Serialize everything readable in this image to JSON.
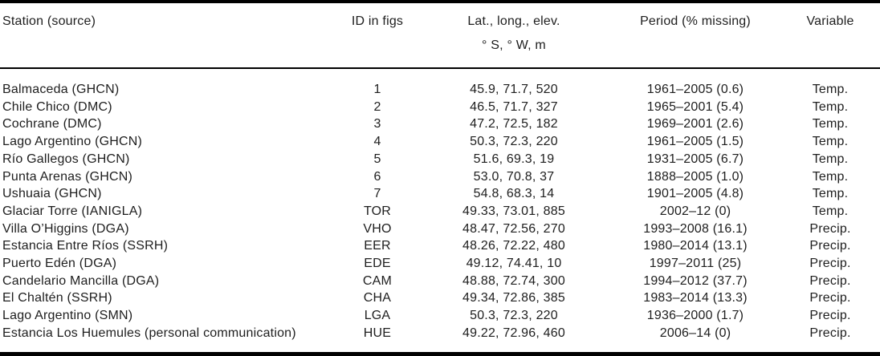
{
  "table": {
    "header": {
      "station": "Station (source)",
      "id": "ID in figs",
      "latlong": "Lat., long., elev.",
      "latlong_units": "° S, ° W, m",
      "period": "Period (% missing)",
      "variable": "Variable"
    },
    "rows": [
      {
        "station": "Balmaceda (GHCN)",
        "id": "1",
        "coords": "45.9, 71.7, 520",
        "period": "1961–2005 (0.6)",
        "variable": "Temp."
      },
      {
        "station": "Chile Chico (DMC)",
        "id": "2",
        "coords": "46.5, 71.7, 327",
        "period": "1965–2001 (5.4)",
        "variable": "Temp."
      },
      {
        "station": "Cochrane (DMC)",
        "id": "3",
        "coords": "47.2, 72.5, 182",
        "period": "1969–2001 (2.6)",
        "variable": "Temp."
      },
      {
        "station": "Lago Argentino (GHCN)",
        "id": "4",
        "coords": "50.3, 72.3, 220",
        "period": "1961–2005 (1.5)",
        "variable": "Temp."
      },
      {
        "station": "Río Gallegos (GHCN)",
        "id": "5",
        "coords": "51.6, 69.3, 19",
        "period": "1931–2005 (6.7)",
        "variable": "Temp."
      },
      {
        "station": "Punta Arenas (GHCN)",
        "id": "6",
        "coords": "53.0, 70.8, 37",
        "period": "1888–2005 (1.0)",
        "variable": "Temp."
      },
      {
        "station": "Ushuaia (GHCN)",
        "id": "7",
        "coords": "54.8, 68.3, 14",
        "period": "1901–2005 (4.8)",
        "variable": "Temp."
      },
      {
        "station": "Glaciar Torre (IANIGLA)",
        "id": "TOR",
        "coords": "49.33, 73.01, 885",
        "period": "2002–12 (0)",
        "variable": "Temp."
      },
      {
        "station": "Villa O’Higgins (DGA)",
        "id": "VHO",
        "coords": "48.47, 72.56, 270",
        "period": "1993–2008 (16.1)",
        "variable": "Precip."
      },
      {
        "station": "Estancia Entre Ríos (SSRH)",
        "id": "EER",
        "coords": "48.26, 72.22, 480",
        "period": "1980–2014 (13.1)",
        "variable": "Precip."
      },
      {
        "station": "Puerto Edén (DGA)",
        "id": "EDE",
        "coords": "49.12, 74.41, 10",
        "period": "1997–2011 (25)",
        "variable": "Precip."
      },
      {
        "station": "Candelario Mancilla (DGA)",
        "id": "CAM",
        "coords": "48.88, 72.74, 300",
        "period": "1994–2012 (37.7)",
        "variable": "Precip."
      },
      {
        "station": "El Chaltén (SSRH)",
        "id": "CHA",
        "coords": "49.34, 72.86, 385",
        "period": "1983–2014 (13.3)",
        "variable": "Precip."
      },
      {
        "station": "Lago Argentino (SMN)",
        "id": "LGA",
        "coords": "50.3, 72.3, 220",
        "period": "1936–2000 (1.7)",
        "variable": "Precip."
      },
      {
        "station": "Estancia Los Huemules (personal communication)",
        "id": "HUE",
        "coords": "49.22, 72.96, 460",
        "period": "2006–14 (0)",
        "variable": "Precip."
      }
    ]
  }
}
